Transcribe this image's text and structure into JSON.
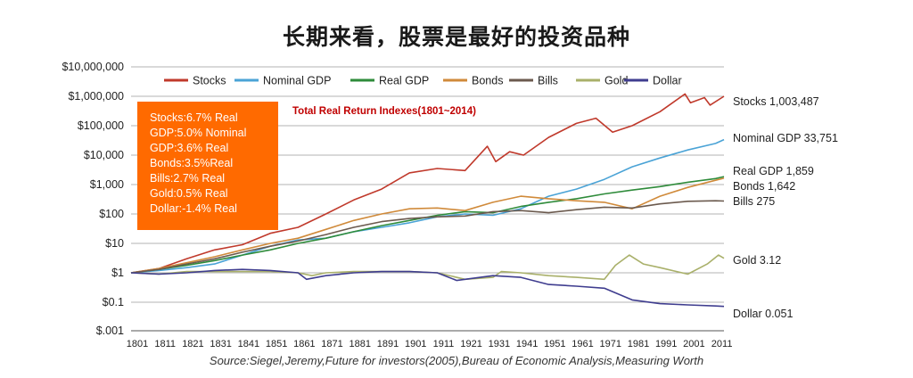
{
  "page": {
    "title": "长期来看，股票是最好的投资品种",
    "source": "Source:Siegel,Jeremy,Future for investors(2005),Bureau of Economic Analysis,Measuring   Worth"
  },
  "summary_box": [
    "Stocks:6.7% Real",
    "GDP:5.0% Nominal",
    "GDP:3.6% Real",
    "Bonds:3.5%Real",
    "Bills:2.7% Real",
    "Gold:0.5% Real",
    "Dollar:-1.4% Real"
  ],
  "chart_data": {
    "type": "line",
    "title": "Total Real Return Indexes(1801~2014)",
    "xlabel": "",
    "ylabel": "",
    "log_scale_y": true,
    "grid": true,
    "legend_position": "top",
    "xlim": [
      1801,
      2014
    ],
    "ylim": [
      0.001,
      10000000
    ],
    "y_tick_values": [
      10000000,
      1000000,
      100000,
      10000,
      1000,
      100,
      10,
      1,
      0.1,
      0.001
    ],
    "y_tick_labels": [
      "$10,000,000",
      "$1,000,000",
      "$100,000",
      "$10,000",
      "$1,000",
      "$100",
      "$10",
      "$1",
      "$0.1",
      "$.001"
    ],
    "x_ticks": [
      1801,
      1811,
      1821,
      1831,
      1841,
      1851,
      1861,
      1871,
      1881,
      1891,
      1901,
      1911,
      1921,
      1931,
      1941,
      1951,
      1961,
      1971,
      1981,
      1991,
      2001,
      2011
    ],
    "series": [
      {
        "name": "Stocks",
        "color": "#c0392b",
        "end_label": "Stocks 1,003,487",
        "points": [
          [
            1801,
            1
          ],
          [
            1811,
            1.4
          ],
          [
            1821,
            3
          ],
          [
            1831,
            6
          ],
          [
            1841,
            9
          ],
          [
            1851,
            22
          ],
          [
            1861,
            35
          ],
          [
            1871,
            100
          ],
          [
            1881,
            300
          ],
          [
            1891,
            700
          ],
          [
            1901,
            2500
          ],
          [
            1911,
            3500
          ],
          [
            1921,
            3000
          ],
          [
            1929,
            20000
          ],
          [
            1932,
            6000
          ],
          [
            1937,
            13000
          ],
          [
            1942,
            10000
          ],
          [
            1951,
            40000
          ],
          [
            1961,
            120000
          ],
          [
            1968,
            180000
          ],
          [
            1974,
            60000
          ],
          [
            1981,
            100000
          ],
          [
            1991,
            300000
          ],
          [
            2000,
            1200000
          ],
          [
            2002,
            600000
          ],
          [
            2007,
            900000
          ],
          [
            2009,
            500000
          ],
          [
            2014,
            1003487
          ]
        ]
      },
      {
        "name": "Nominal GDP",
        "color": "#4aa3d6",
        "end_label": "Nominal GDP 33,751",
        "points": [
          [
            1801,
            1
          ],
          [
            1811,
            1.2
          ],
          [
            1821,
            1.5
          ],
          [
            1831,
            2
          ],
          [
            1841,
            4
          ],
          [
            1851,
            8
          ],
          [
            1861,
            13
          ],
          [
            1871,
            15
          ],
          [
            1881,
            25
          ],
          [
            1891,
            35
          ],
          [
            1901,
            50
          ],
          [
            1911,
            80
          ],
          [
            1921,
            100
          ],
          [
            1931,
            90
          ],
          [
            1941,
            150
          ],
          [
            1951,
            400
          ],
          [
            1961,
            700
          ],
          [
            1971,
            1500
          ],
          [
            1981,
            4000
          ],
          [
            1991,
            8000
          ],
          [
            2001,
            15000
          ],
          [
            2011,
            25000
          ],
          [
            2014,
            33751
          ]
        ]
      },
      {
        "name": "Real GDP",
        "color": "#2e8b3a",
        "end_label": "Real GDP 1,859",
        "points": [
          [
            1801,
            1
          ],
          [
            1811,
            1.3
          ],
          [
            1821,
            1.8
          ],
          [
            1831,
            2.6
          ],
          [
            1841,
            4
          ],
          [
            1851,
            6
          ],
          [
            1861,
            10
          ],
          [
            1871,
            15
          ],
          [
            1881,
            25
          ],
          [
            1891,
            40
          ],
          [
            1901,
            60
          ],
          [
            1911,
            90
          ],
          [
            1921,
            120
          ],
          [
            1931,
            110
          ],
          [
            1941,
            180
          ],
          [
            1951,
            250
          ],
          [
            1961,
            330
          ],
          [
            1971,
            480
          ],
          [
            1981,
            650
          ],
          [
            1991,
            850
          ],
          [
            2001,
            1200
          ],
          [
            2011,
            1600
          ],
          [
            2014,
            1859
          ]
        ]
      },
      {
        "name": "Bonds",
        "color": "#d08a3a",
        "end_label": "Bonds 1,642",
        "points": [
          [
            1801,
            1
          ],
          [
            1811,
            1.4
          ],
          [
            1821,
            2.2
          ],
          [
            1831,
            3.5
          ],
          [
            1841,
            6
          ],
          [
            1851,
            10
          ],
          [
            1861,
            15
          ],
          [
            1871,
            30
          ],
          [
            1881,
            60
          ],
          [
            1891,
            100
          ],
          [
            1901,
            150
          ],
          [
            1911,
            160
          ],
          [
            1921,
            130
          ],
          [
            1931,
            250
          ],
          [
            1941,
            400
          ],
          [
            1951,
            330
          ],
          [
            1961,
            280
          ],
          [
            1971,
            250
          ],
          [
            1981,
            150
          ],
          [
            1991,
            400
          ],
          [
            2001,
            800
          ],
          [
            2011,
            1400
          ],
          [
            2014,
            1642
          ]
        ]
      },
      {
        "name": "Bills",
        "color": "#6b5a4e",
        "end_label": "Bills 275",
        "points": [
          [
            1801,
            1
          ],
          [
            1811,
            1.3
          ],
          [
            1821,
            2
          ],
          [
            1831,
            3
          ],
          [
            1841,
            5
          ],
          [
            1851,
            8
          ],
          [
            1861,
            12
          ],
          [
            1871,
            20
          ],
          [
            1881,
            35
          ],
          [
            1891,
            55
          ],
          [
            1901,
            70
          ],
          [
            1911,
            80
          ],
          [
            1921,
            85
          ],
          [
            1931,
            120
          ],
          [
            1941,
            130
          ],
          [
            1951,
            110
          ],
          [
            1961,
            140
          ],
          [
            1971,
            170
          ],
          [
            1981,
            160
          ],
          [
            1991,
            220
          ],
          [
            2001,
            270
          ],
          [
            2011,
            280
          ],
          [
            2014,
            275
          ]
        ]
      },
      {
        "name": "Gold",
        "color": "#a9b06a",
        "end_label": "Gold 3.12",
        "points": [
          [
            1801,
            1
          ],
          [
            1811,
            0.9
          ],
          [
            1821,
            1.1
          ],
          [
            1831,
            1.1
          ],
          [
            1841,
            1.1
          ],
          [
            1851,
            1.1
          ],
          [
            1861,
            1.0
          ],
          [
            1866,
            0.8
          ],
          [
            1871,
            1.0
          ],
          [
            1881,
            1.1
          ],
          [
            1891,
            1.1
          ],
          [
            1901,
            1.1
          ],
          [
            1911,
            1.0
          ],
          [
            1921,
            0.6
          ],
          [
            1931,
            0.7
          ],
          [
            1934,
            1.1
          ],
          [
            1941,
            1.0
          ],
          [
            1951,
            0.8
          ],
          [
            1961,
            0.7
          ],
          [
            1971,
            0.6
          ],
          [
            1975,
            1.8
          ],
          [
            1980,
            4.0
          ],
          [
            1985,
            2.0
          ],
          [
            1991,
            1.5
          ],
          [
            2001,
            0.9
          ],
          [
            2008,
            2.0
          ],
          [
            2012,
            4.0
          ],
          [
            2014,
            3.12
          ]
        ]
      },
      {
        "name": "Dollar",
        "color": "#3f3d8f",
        "end_label": "Dollar 0.051",
        "points": [
          [
            1801,
            1
          ],
          [
            1811,
            0.9
          ],
          [
            1821,
            1.0
          ],
          [
            1831,
            1.2
          ],
          [
            1841,
            1.3
          ],
          [
            1851,
            1.2
          ],
          [
            1861,
            1.0
          ],
          [
            1864,
            0.6
          ],
          [
            1871,
            0.8
          ],
          [
            1881,
            1.0
          ],
          [
            1891,
            1.1
          ],
          [
            1901,
            1.1
          ],
          [
            1911,
            1.0
          ],
          [
            1918,
            0.55
          ],
          [
            1921,
            0.6
          ],
          [
            1931,
            0.8
          ],
          [
            1941,
            0.7
          ],
          [
            1951,
            0.4
          ],
          [
            1961,
            0.35
          ],
          [
            1971,
            0.3
          ],
          [
            1981,
            0.12
          ],
          [
            1991,
            0.08
          ],
          [
            2001,
            0.065
          ],
          [
            2011,
            0.055
          ],
          [
            2014,
            0.051
          ]
        ]
      }
    ]
  }
}
